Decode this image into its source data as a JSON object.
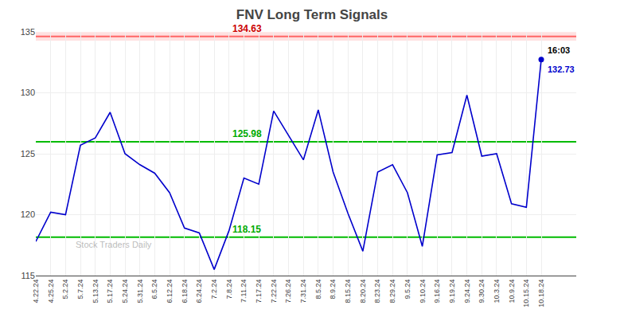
{
  "chart_data": {
    "type": "line",
    "title": "FNV Long Term Signals",
    "categories": [
      "4.22.24",
      "4.25.24",
      "5.2.24",
      "5.7.24",
      "5.13.24",
      "5.17.24",
      "5.24.24",
      "5.31.24",
      "6.5.24",
      "6.12.24",
      "6.18.24",
      "6.24.24",
      "7.2.24",
      "7.8.24",
      "7.11.24",
      "7.17.24",
      "7.22.24",
      "7.26.24",
      "7.31.24",
      "8.5.24",
      "8.9.24",
      "8.15.24",
      "8.20.24",
      "8.23.24",
      "8.29.24",
      "9.5.24",
      "9.10.24",
      "9.16.24",
      "9.19.24",
      "9.24.24",
      "9.30.24",
      "10.3.24",
      "10.9.24",
      "10.15.24",
      "10.18.24"
    ],
    "values": [
      117.8,
      120.2,
      120.0,
      125.7,
      126.3,
      128.4,
      125.0,
      124.1,
      123.4,
      121.8,
      118.9,
      118.5,
      115.5,
      118.7,
      123.0,
      122.5,
      128.5,
      126.5,
      124.5,
      128.6,
      123.5,
      120.1,
      117.0,
      123.5,
      124.1,
      121.8,
      117.4,
      124.9,
      125.1,
      129.8,
      124.8,
      125.0,
      120.9,
      120.6,
      132.73
    ],
    "color": "#0000cc",
    "ylim": [
      115,
      135
    ],
    "yticks": [
      115,
      120,
      125,
      130,
      135
    ],
    "grid": true,
    "reference_lines": [
      {
        "value": 134.63,
        "color": "#ff6666",
        "label_color": "#cc0000",
        "band": [
          134.28,
          134.98
        ],
        "band_color": "#ffcccc"
      },
      {
        "value": 125.98,
        "color": "#00bb00",
        "label_color": "#00aa00"
      },
      {
        "value": 118.15,
        "color": "#00bb00",
        "label_color": "#00aa00"
      }
    ],
    "last_point": {
      "time": "16:03",
      "price": 132.73
    },
    "watermark": "Stock Traders Daily"
  }
}
